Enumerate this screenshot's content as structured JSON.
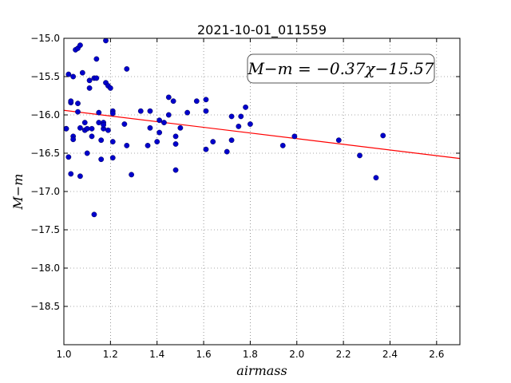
{
  "chart_data": {
    "type": "scatter",
    "title": "2021-10-01_011559",
    "xlabel": "airmass",
    "ylabel": "M−m",
    "xlim": [
      1.0,
      2.7
    ],
    "ylim": [
      -15.0,
      -19.0
    ],
    "y_inverted": true,
    "xticks": [
      1.0,
      1.2,
      1.4,
      1.6,
      1.8,
      2.0,
      2.2,
      2.4,
      2.6
    ],
    "xtick_labels": [
      "1.0",
      "1.2",
      "1.4",
      "1.6",
      "1.8",
      "2.0",
      "2.2",
      "2.4",
      "2.6"
    ],
    "yticks": [
      -15.0,
      -15.5,
      -16.0,
      -16.5,
      -17.0,
      -17.5,
      -18.0,
      -18.5
    ],
    "ytick_labels": [
      "−15.0",
      "−15.5",
      "−16.0",
      "−16.5",
      "−17.0",
      "−17.5",
      "−18.0",
      "−18.5"
    ],
    "grid": true,
    "annotation": "M−m = −0.37χ−15.57",
    "fit": {
      "slope": -0.37,
      "intercept": -15.57,
      "color": "#ff0000"
    },
    "marker_color": "#0000cc",
    "points": [
      [
        1.01,
        -16.18
      ],
      [
        1.01,
        -16.18
      ],
      [
        1.02,
        -16.55
      ],
      [
        1.02,
        -15.47
      ],
      [
        1.03,
        -15.84
      ],
      [
        1.03,
        -15.82
      ],
      [
        1.03,
        -16.77
      ],
      [
        1.04,
        -16.28
      ],
      [
        1.04,
        -16.32
      ],
      [
        1.04,
        -15.5
      ],
      [
        1.05,
        -15.15
      ],
      [
        1.06,
        -15.13
      ],
      [
        1.06,
        -15.85
      ],
      [
        1.06,
        -15.96
      ],
      [
        1.07,
        -15.09
      ],
      [
        1.07,
        -16.17
      ],
      [
        1.07,
        -16.8
      ],
      [
        1.08,
        -15.45
      ],
      [
        1.09,
        -16.1
      ],
      [
        1.09,
        -16.2
      ],
      [
        1.1,
        -16.5
      ],
      [
        1.1,
        -16.18
      ],
      [
        1.11,
        -15.55
      ],
      [
        1.11,
        -15.65
      ],
      [
        1.12,
        -16.28
      ],
      [
        1.12,
        -16.18
      ],
      [
        1.13,
        -15.52
      ],
      [
        1.13,
        -17.3
      ],
      [
        1.14,
        -15.52
      ],
      [
        1.14,
        -15.27
      ],
      [
        1.15,
        -16.1
      ],
      [
        1.15,
        -15.97
      ],
      [
        1.16,
        -16.58
      ],
      [
        1.16,
        -16.33
      ],
      [
        1.17,
        -16.1
      ],
      [
        1.17,
        -16.18
      ],
      [
        1.17,
        -16.13
      ],
      [
        1.18,
        -15.03
      ],
      [
        1.18,
        -15.58
      ],
      [
        1.19,
        -15.62
      ],
      [
        1.19,
        -16.2
      ],
      [
        1.2,
        -15.65
      ],
      [
        1.21,
        -15.95
      ],
      [
        1.21,
        -15.98
      ],
      [
        1.21,
        -16.35
      ],
      [
        1.21,
        -16.56
      ],
      [
        1.26,
        -16.12
      ],
      [
        1.27,
        -16.4
      ],
      [
        1.27,
        -15.4
      ],
      [
        1.29,
        -16.78
      ],
      [
        1.33,
        -15.95
      ],
      [
        1.36,
        -16.4
      ],
      [
        1.37,
        -16.17
      ],
      [
        1.37,
        -15.95
      ],
      [
        1.4,
        -16.35
      ],
      [
        1.41,
        -16.07
      ],
      [
        1.41,
        -16.23
      ],
      [
        1.43,
        -16.1
      ],
      [
        1.45,
        -16.0
      ],
      [
        1.45,
        -15.77
      ],
      [
        1.47,
        -15.82
      ],
      [
        1.48,
        -16.28
      ],
      [
        1.48,
        -16.38
      ],
      [
        1.48,
        -16.72
      ],
      [
        1.5,
        -16.17
      ],
      [
        1.53,
        -15.97
      ],
      [
        1.57,
        -15.82
      ],
      [
        1.61,
        -15.8
      ],
      [
        1.61,
        -15.95
      ],
      [
        1.61,
        -16.45
      ],
      [
        1.64,
        -16.35
      ],
      [
        1.7,
        -16.48
      ],
      [
        1.72,
        -16.02
      ],
      [
        1.72,
        -16.33
      ],
      [
        1.75,
        -16.15
      ],
      [
        1.76,
        -16.02
      ],
      [
        1.78,
        -15.9
      ],
      [
        1.8,
        -16.12
      ],
      [
        1.94,
        -16.4
      ],
      [
        1.99,
        -16.28
      ],
      [
        2.18,
        -16.33
      ],
      [
        2.27,
        -16.53
      ],
      [
        2.34,
        -16.82
      ],
      [
        2.37,
        -16.27
      ]
    ]
  }
}
